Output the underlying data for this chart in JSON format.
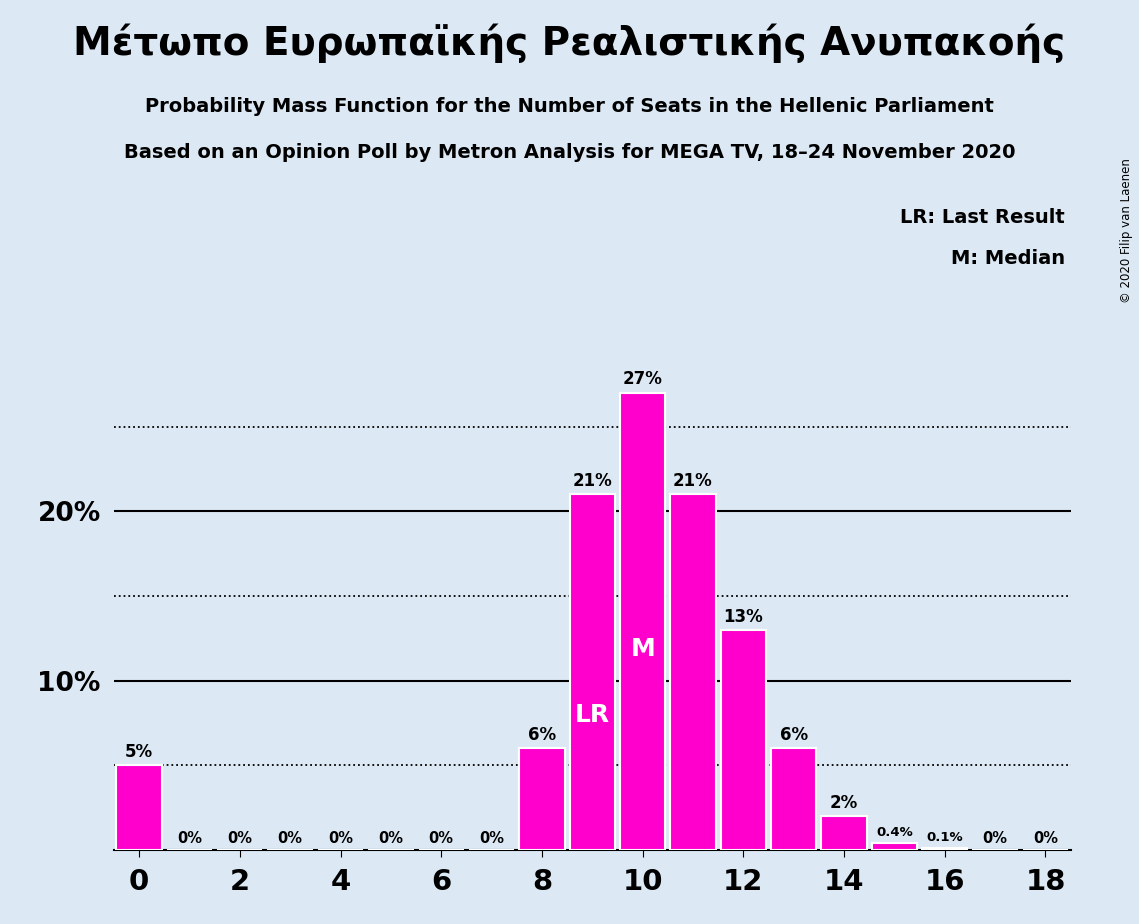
{
  "title_greek": "Μέτωπο Ευρωπαϊκής Ρεαλιστικής Ανυπακοής",
  "subtitle1": "Probability Mass Function for the Number of Seats in the Hellenic Parliament",
  "subtitle2": "Based on an Opinion Poll by Metron Analysis for MEGA TV, 18–24 November 2020",
  "copyright": "© 2020 Filip van Laenen",
  "seats": [
    0,
    1,
    2,
    3,
    4,
    5,
    6,
    7,
    8,
    9,
    10,
    11,
    12,
    13,
    14,
    15,
    16,
    17,
    18
  ],
  "probabilities": [
    5,
    0,
    0,
    0,
    0,
    0,
    0,
    0,
    6,
    21,
    27,
    21,
    13,
    6,
    2,
    0.4,
    0.1,
    0,
    0
  ],
  "bar_color": "#FF00CC",
  "bar_edge_color": "white",
  "background_color": "#DCE9F5",
  "legend_lr": "LR: Last Result",
  "legend_m": "M: Median",
  "lr_seat": 9,
  "median_seat": 10,
  "lr_label": "LR",
  "median_label": "M",
  "xticks": [
    0,
    2,
    4,
    6,
    8,
    10,
    12,
    14,
    16,
    18
  ],
  "xlim": [
    -0.5,
    18.5
  ],
  "ylim": [
    0,
    30
  ],
  "dotted_lines": [
    5,
    15,
    25
  ],
  "solid_lines": [
    10,
    20
  ],
  "ytick_positions": [
    10,
    20
  ],
  "ytick_labels": [
    "10%",
    "20%"
  ]
}
